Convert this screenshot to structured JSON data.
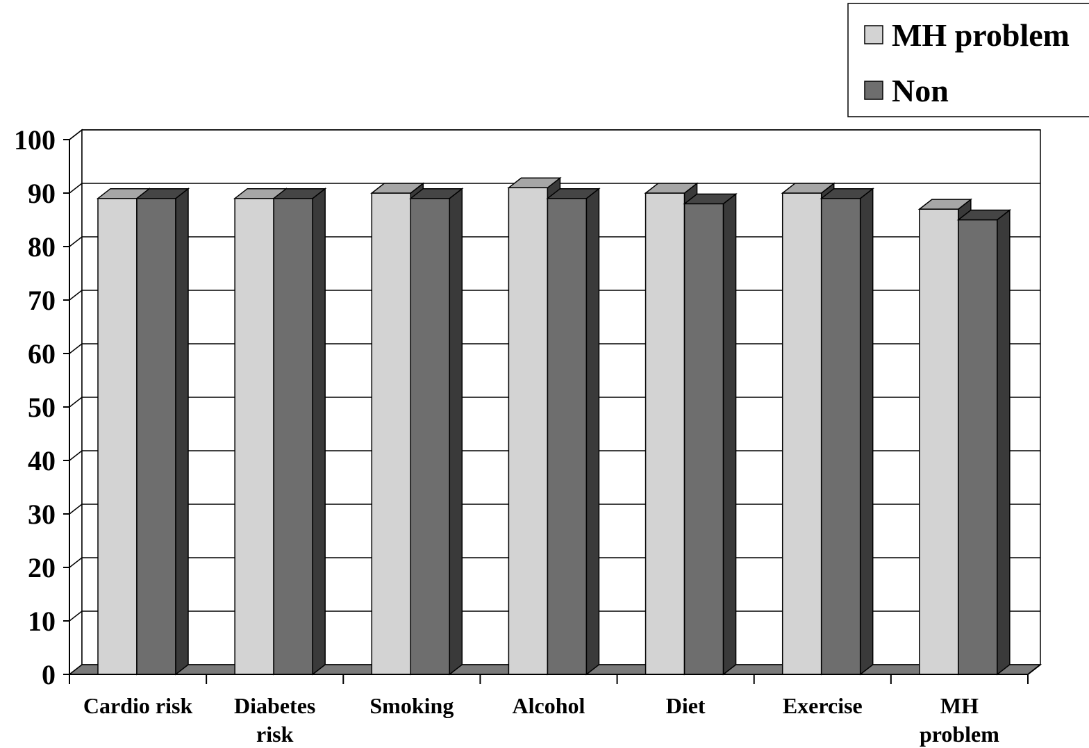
{
  "chart_data": {
    "type": "bar",
    "categories": [
      "Cardio risk",
      "Diabetes risk",
      "Smoking",
      "Alcohol",
      "Diet",
      "Exercise",
      "MH problem"
    ],
    "category_lines": [
      [
        "Cardio risk"
      ],
      [
        "Diabetes",
        "risk"
      ],
      [
        "Smoking"
      ],
      [
        "Alcohol"
      ],
      [
        "Diet"
      ],
      [
        "Exercise"
      ],
      [
        "MH",
        "problem"
      ]
    ],
    "series": [
      {
        "name": "MH problem",
        "values": [
          89,
          89,
          90,
          91,
          90,
          90,
          87
        ],
        "color": "#d3d3d3"
      },
      {
        "name": "Non",
        "values": [
          89,
          89,
          89,
          89,
          88,
          89,
          85
        ],
        "color": "#6e6e6e"
      }
    ],
    "ylim": [
      0,
      100
    ],
    "yticks": [
      "0",
      "10",
      "20",
      "30",
      "40",
      "50",
      "60",
      "70",
      "80",
      "90",
      "100"
    ],
    "grid": true,
    "legend_position": "top-right",
    "three_d": true,
    "colors": {
      "grid": "#000000",
      "floor": "#7a7a7a",
      "side_dark": "#3a3a3a",
      "top_light": "#a6a6a6",
      "top_dark": "#454545"
    }
  }
}
